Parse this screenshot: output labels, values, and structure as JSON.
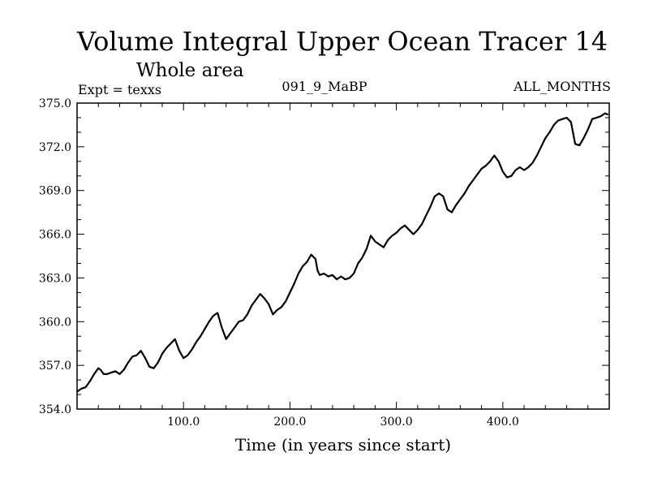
{
  "chart_data": {
    "type": "line",
    "title": "Volume Integral Upper Ocean Tracer 14",
    "subtitle": "Whole area",
    "annotations": {
      "expt": "Expt = texxs",
      "period": "091_9_MaBP",
      "months": "ALL_MONTHS"
    },
    "xlabel": "Time (in years since start)",
    "ylabel": "",
    "xlim": [
      0,
      500
    ],
    "ylim": [
      354.0,
      375.0
    ],
    "x_ticks": [
      100,
      200,
      300,
      400
    ],
    "x_tick_labels": [
      "100.0",
      "200.0",
      "300.0",
      "400.0"
    ],
    "y_ticks": [
      354,
      357,
      360,
      363,
      366,
      369,
      372,
      375
    ],
    "y_tick_labels": [
      "354.0",
      "357.0",
      "360.0",
      "363.0",
      "366.0",
      "369.0",
      "372.0",
      "375.0"
    ],
    "series": [
      {
        "name": "Tracer 14",
        "x": [
          0,
          4,
          8,
          12,
          16,
          20,
          22,
          25,
          28,
          32,
          36,
          40,
          44,
          48,
          52,
          56,
          60,
          64,
          68,
          72,
          76,
          80,
          84,
          88,
          92,
          96,
          100,
          104,
          108,
          112,
          116,
          120,
          124,
          128,
          132,
          136,
          140,
          144,
          148,
          152,
          156,
          160,
          164,
          168,
          172,
          176,
          180,
          184,
          188,
          192,
          196,
          200,
          204,
          208,
          212,
          216,
          220,
          224,
          226,
          228,
          232,
          236,
          240,
          244,
          248,
          252,
          256,
          260,
          264,
          268,
          272,
          276,
          280,
          284,
          288,
          292,
          296,
          300,
          304,
          308,
          312,
          316,
          320,
          324,
          328,
          332,
          336,
          340,
          344,
          348,
          352,
          356,
          360,
          364,
          368,
          372,
          376,
          380,
          384,
          388,
          392,
          396,
          400,
          404,
          408,
          412,
          416,
          420,
          424,
          428,
          432,
          436,
          440,
          444,
          448,
          452,
          456,
          460,
          464,
          468,
          472,
          476,
          480,
          484,
          488,
          492,
          496,
          499
        ],
        "y": [
          355.2,
          355.4,
          355.5,
          355.9,
          356.4,
          356.8,
          356.7,
          356.4,
          356.4,
          356.5,
          356.6,
          356.4,
          356.7,
          357.2,
          357.6,
          357.7,
          358.0,
          357.5,
          356.9,
          356.8,
          357.2,
          357.8,
          358.2,
          358.5,
          358.8,
          358.0,
          357.5,
          357.7,
          358.1,
          358.6,
          359.0,
          359.5,
          360.0,
          360.4,
          360.6,
          359.6,
          358.8,
          359.2,
          359.6,
          360.0,
          360.1,
          360.5,
          361.1,
          361.5,
          361.9,
          361.6,
          361.2,
          360.5,
          360.8,
          361.0,
          361.4,
          362.0,
          362.6,
          363.3,
          363.8,
          364.1,
          364.6,
          364.3,
          363.5,
          363.2,
          363.3,
          363.1,
          363.2,
          362.9,
          363.1,
          362.9,
          363.0,
          363.3,
          364.0,
          364.4,
          365.0,
          365.9,
          365.5,
          365.3,
          365.1,
          365.6,
          365.9,
          366.1,
          366.4,
          366.6,
          366.3,
          366.0,
          366.3,
          366.7,
          367.3,
          367.9,
          368.6,
          368.8,
          368.6,
          367.7,
          367.5,
          368.0,
          368.4,
          368.8,
          369.3,
          369.7,
          370.1,
          370.5,
          370.7,
          371.0,
          371.4,
          371.0,
          370.3,
          369.9,
          370.0,
          370.4,
          370.6,
          370.4,
          370.6,
          370.9,
          371.4,
          372.0,
          372.6,
          373.0,
          373.5,
          373.8,
          373.9,
          374.0,
          373.7,
          372.2,
          372.1,
          372.6,
          373.2,
          373.9,
          374.0,
          374.1,
          374.3,
          374.2
        ]
      }
    ]
  }
}
